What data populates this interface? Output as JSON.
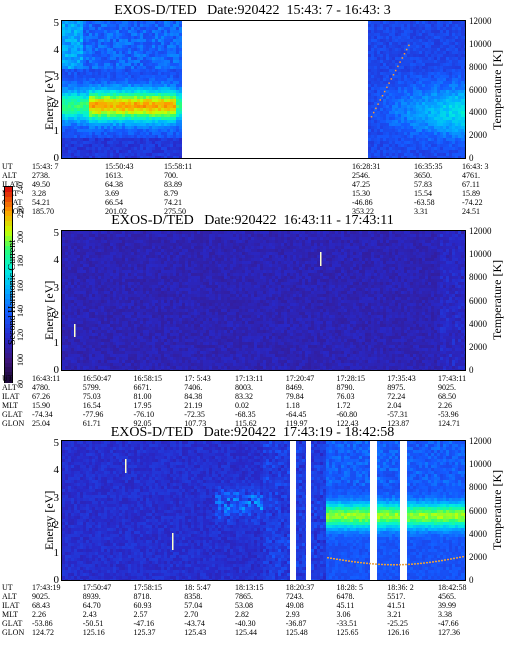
{
  "colorbar": {
    "label": "Second Harmonic Current",
    "ticks": [
      "80",
      "100",
      "120",
      "140",
      "160",
      "180",
      "200",
      "220",
      "240"
    ]
  },
  "chart_data": [
    {
      "type": "heatmap",
      "title": "EXOS-D/TED   Date:920422  15:43: 7 - 16:43: 3",
      "ylabel": "Energy [eV]",
      "y2label": "Temperature [K]",
      "ylim": [
        0,
        5
      ],
      "y2lim": [
        0,
        12000
      ],
      "yticks": [
        "0",
        "1",
        "2",
        "3",
        "4",
        "5"
      ],
      "y2ticks": [
        "0",
        "2000",
        "4000",
        "6000",
        "8000",
        "10000",
        "12000"
      ],
      "data_gap_fraction": [
        0.29,
        0.75
      ],
      "table": {
        "labels": [
          "UT",
          "ALT",
          "ILAT",
          "MLT",
          "GLAT",
          "GLON"
        ],
        "columns": [
          [
            "15:43: 7",
            "2738.",
            "49.50",
            "3.28",
            "54.21",
            "185.70"
          ],
          [
            "15:50:43",
            "1613.",
            "64.38",
            "3.69",
            "66.54",
            "201.02"
          ],
          [
            "15:58:11",
            "700.",
            "83.89",
            "8.79",
            "74.21",
            "275.50"
          ],
          [
            "16:28:31",
            "2546.",
            "47.25",
            "15.30",
            "-46.86",
            "353.22"
          ],
          [
            "16:35:35",
            "3650.",
            "57.83",
            "15.54",
            "-63.58",
            "3.31"
          ],
          [
            "16:43: 3",
            "4761.",
            "67.11",
            "15.89",
            "-74.22",
            "24.51"
          ]
        ]
      }
    },
    {
      "type": "heatmap",
      "title": "EXOS-D/TED   Date:920422  16:43:11 - 17:43:11",
      "ylabel": "Energy [eV]",
      "y2label": "Temperature [K]",
      "ylim": [
        0,
        5
      ],
      "y2lim": [
        0,
        12000
      ],
      "yticks": [
        "0",
        "1",
        "2",
        "3",
        "4",
        "5"
      ],
      "y2ticks": [
        "0",
        "2000",
        "4000",
        "6000",
        "8000",
        "10000",
        "12000"
      ],
      "table": {
        "labels": [
          "UT",
          "ALT",
          "ILAT",
          "MLT",
          "GLAT",
          "GLON"
        ],
        "columns": [
          [
            "16:43:11",
            "4780.",
            "67.26",
            "15.90",
            "-74.34",
            "25.04"
          ],
          [
            "16:50:47",
            "5799.",
            "75.03",
            "16.54",
            "-77.96",
            "61.71"
          ],
          [
            "16:58:15",
            "6671.",
            "81.00",
            "17.95",
            "-76.10",
            "92.05"
          ],
          [
            "17: 5:43",
            "7406.",
            "84.38",
            "21.19",
            "-72.35",
            "107.73"
          ],
          [
            "17:13:11",
            "8003.",
            "83.32",
            "0.02",
            "-68.35",
            "115.62"
          ],
          [
            "17:20:47",
            "8469.",
            "79.84",
            "1.18",
            "-64.45",
            "119.97"
          ],
          [
            "17:28:15",
            "8790.",
            "76.03",
            "1.72",
            "-60.80",
            "122.43"
          ],
          [
            "17:35:43",
            "8975.",
            "72.24",
            "2.04",
            "-57.31",
            "123.87"
          ],
          [
            "17:43:11",
            "9025.",
            "68.50",
            "2.26",
            "-53.96",
            "124.71"
          ]
        ]
      }
    },
    {
      "type": "heatmap",
      "title": "EXOS-D/TED   Date:920422  17:43:19 - 18:42:58",
      "ylabel": "Energy [eV]",
      "y2label": "Temperature [K]",
      "ylim": [
        0,
        5
      ],
      "y2lim": [
        0,
        12000
      ],
      "yticks": [
        "0",
        "1",
        "2",
        "3",
        "4",
        "5"
      ],
      "y2ticks": [
        "0",
        "2000",
        "4000",
        "6000",
        "8000",
        "10000",
        "12000"
      ],
      "table": {
        "labels": [
          "UT",
          "ALT",
          "ILAT",
          "MLT",
          "GLAT",
          "GLON"
        ],
        "columns": [
          [
            "17:43:19",
            "9025.",
            "68.43",
            "2.26",
            "-53.86",
            "124.72"
          ],
          [
            "17:50:47",
            "8939.",
            "64.70",
            "2.43",
            "-50.51",
            "125.16"
          ],
          [
            "17:58:15",
            "8718.",
            "60.93",
            "2.57",
            "-47.16",
            "125.37"
          ],
          [
            "18: 5:47",
            "8358.",
            "57.04",
            "2.70",
            "-43.74",
            "125.43"
          ],
          [
            "18:13:15",
            "7865.",
            "53.08",
            "2.82",
            "-40.30",
            "125.44"
          ],
          [
            "18:20:37",
            "7243.",
            "49.08",
            "2.93",
            "-36.87",
            "125.48"
          ],
          [
            "18:28: 5",
            "6478.",
            "45.11",
            "3.06",
            "-33.51",
            "125.65"
          ],
          [
            "18:36: 2",
            "5517.",
            "41.51",
            "3.21",
            "-25.25",
            "126.16"
          ],
          [
            "18:42:58",
            "4565.",
            "39.99",
            "3.38",
            "-47.66",
            "127.36"
          ]
        ]
      }
    }
  ]
}
